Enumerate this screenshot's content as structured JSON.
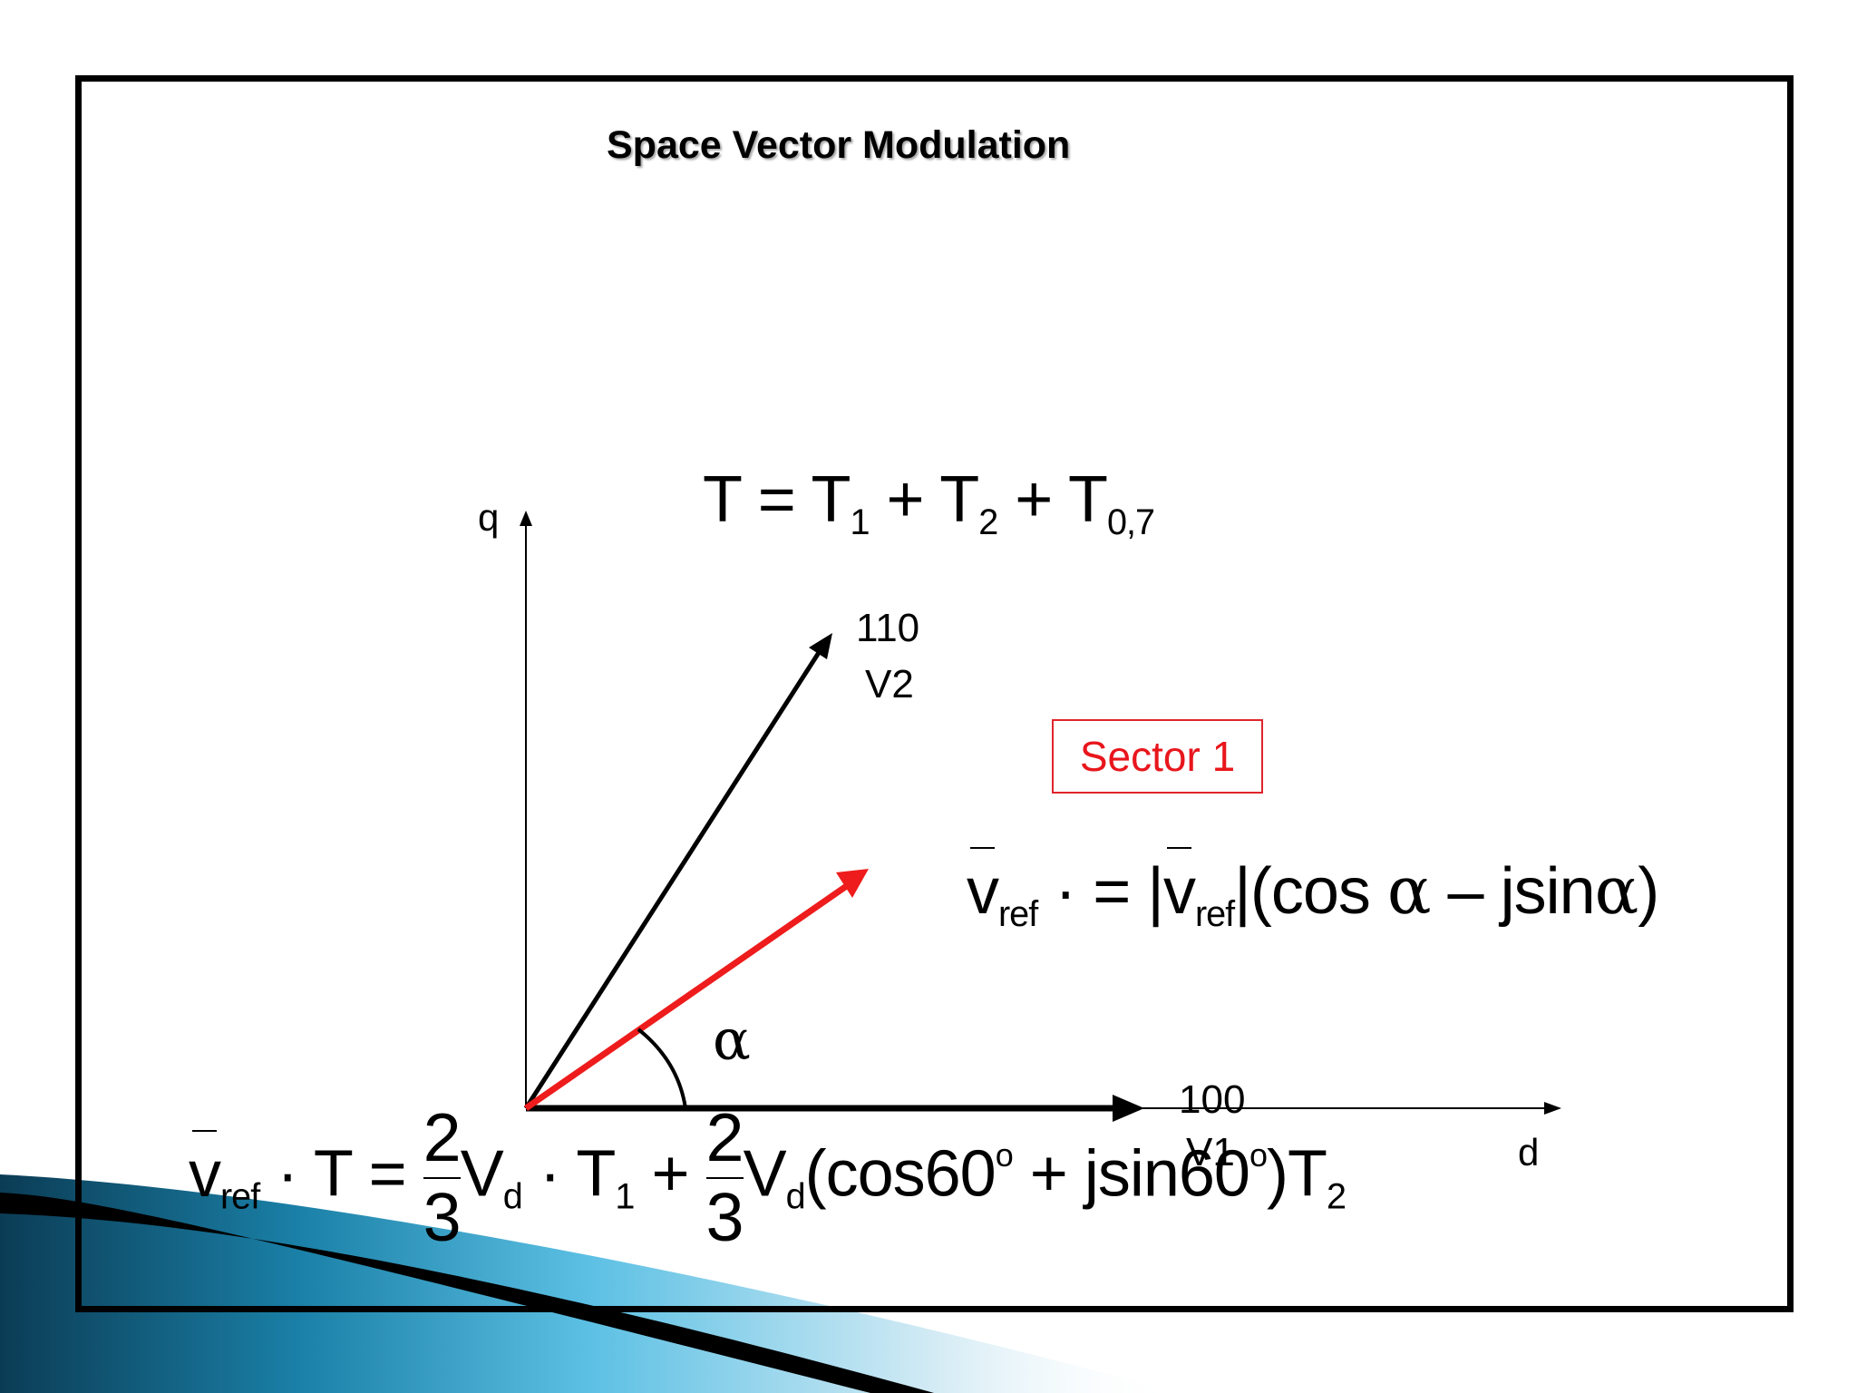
{
  "slide": {
    "title": "Space Vector Modulation",
    "accent_colors": [
      "#0b3c55",
      "#1a7fa6",
      "#5cc0e4",
      "#d6ecf5"
    ]
  },
  "diagram": {
    "axis_q_label": "q",
    "axis_d_label": "d",
    "vector_v2_code": "110",
    "vector_v2_name": "V2",
    "vector_v1_code": "100",
    "vector_v1_name": "V1",
    "reference_vector_color": "#ee1c1c",
    "angle_symbol": "α",
    "sector_label": "Sector 1",
    "sector_color": "#e8161c"
  },
  "equations": {
    "time_sum": {
      "lhs": "T",
      "eq": "=",
      "t1": "T",
      "t1_sub": "1",
      "plus1": "+",
      "t2": "T",
      "t2_sub": "2",
      "plus2": "+",
      "t07": "T",
      "t07_sub": "0,7"
    },
    "vref_polar": {
      "v": "v",
      "v_sub": "ref",
      "dot": "·",
      "eq": "=",
      "abs_l": "|",
      "abs_v": "v",
      "abs_v_sub": "ref",
      "abs_r": "|",
      "open": "(",
      "cos": "cos",
      "alpha1": "α",
      "minus": "–",
      "jsin": "jsin",
      "alpha2": "α",
      "close": ")"
    },
    "vref_time": {
      "v": "v",
      "v_sub": "ref",
      "dot_t": "· T",
      "eq": "=",
      "frac1_num": "2",
      "frac1_den": "3",
      "vd1": "V",
      "vd1_sub": "d",
      "dot_t1": "· T",
      "t1_sub": "1",
      "plus": "+",
      "frac2_num": "2",
      "frac2_den": "3",
      "vd2": "V",
      "vd2_sub": "d",
      "cos_part": "(cos60",
      "deg1": "o",
      "plus2": "+",
      "jsin_part": "jsin60",
      "deg2": "o",
      "close_t2": ")T",
      "t2_sub": "2"
    }
  }
}
